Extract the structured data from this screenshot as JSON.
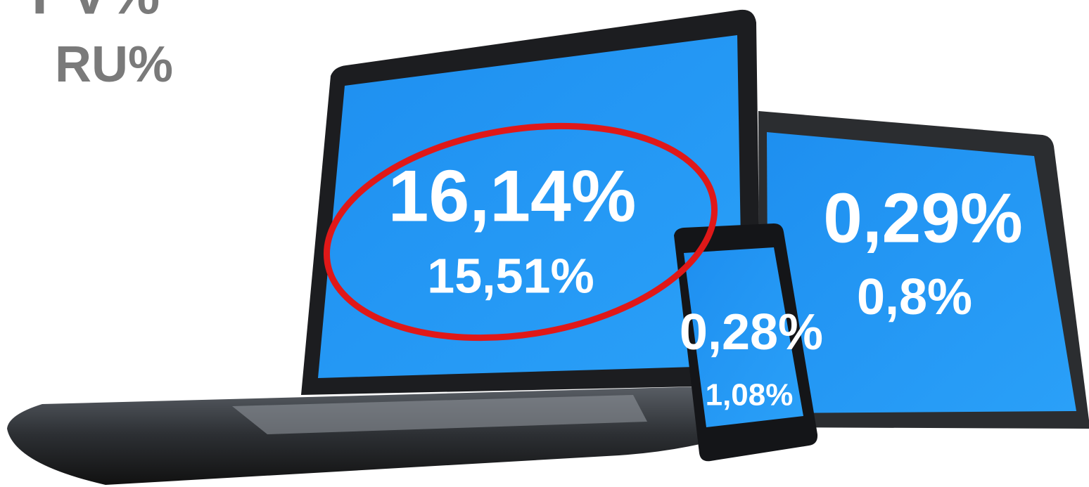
{
  "header": {
    "lines": [
      "PV%",
      "RU%"
    ]
  },
  "devices": {
    "laptop": {
      "primary": "16,14%",
      "secondary": "15,51%"
    },
    "phone": {
      "primary": "0,28%",
      "secondary": "1,08%"
    },
    "tablet": {
      "primary": "0,29%",
      "secondary": "0,8%"
    }
  }
}
